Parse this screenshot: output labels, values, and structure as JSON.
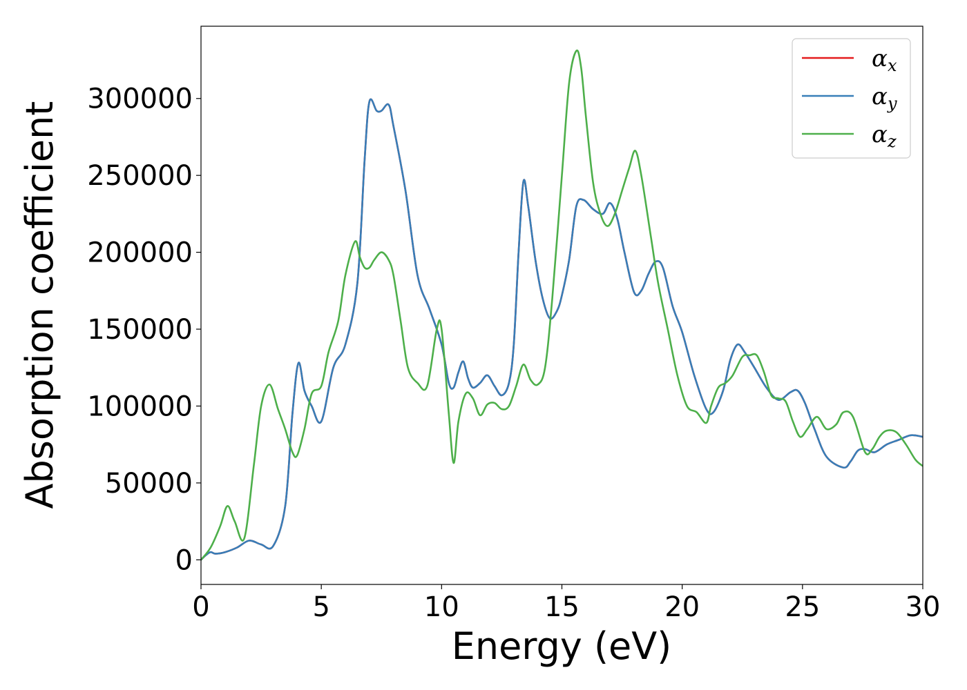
{
  "chart_data": {
    "type": "line",
    "title": "",
    "xlabel": "Energy (eV)",
    "ylabel": "Absorption coefficient",
    "xlim": [
      0,
      30
    ],
    "ylim": [
      -16000,
      347000
    ],
    "xticks": [
      0,
      5,
      10,
      15,
      20,
      25,
      30
    ],
    "yticks": [
      0,
      50000,
      100000,
      150000,
      200000,
      250000,
      300000
    ],
    "grid": false,
    "legend_position": "top-right",
    "series": [
      {
        "name": "α_x",
        "symbol": "α",
        "subscript": "x",
        "color": "#e41a1c",
        "x": [
          0,
          0.2,
          0.4,
          0.6,
          1.0,
          1.5,
          2.0,
          2.5,
          3.0,
          3.5,
          3.8,
          4.05,
          4.3,
          4.6,
          5.0,
          5.5,
          6.0,
          6.5,
          6.8,
          7.0,
          7.3,
          7.5,
          7.8,
          8.0,
          8.5,
          9.0,
          9.5,
          10.0,
          10.3,
          10.5,
          10.7,
          10.9,
          11.1,
          11.3,
          11.6,
          11.9,
          12.2,
          12.5,
          12.8,
          13.0,
          13.2,
          13.4,
          13.6,
          13.9,
          14.2,
          14.5,
          14.8,
          15.0,
          15.3,
          15.6,
          15.9,
          16.3,
          16.7,
          17.0,
          17.3,
          17.6,
          18.0,
          18.3,
          18.6,
          18.9,
          19.2,
          19.6,
          20.0,
          20.5,
          21.0,
          21.3,
          21.7,
          22.0,
          22.3,
          22.6,
          23.0,
          23.5,
          24.0,
          24.5,
          24.8,
          25.1,
          25.5,
          26.0,
          26.7,
          27.0,
          27.3,
          27.6,
          28.0,
          28.5,
          29.0,
          29.5,
          30.0
        ],
        "y": [
          0,
          3000,
          5000,
          4000,
          5000,
          8000,
          12500,
          10000,
          9000,
          35000,
          95000,
          128000,
          110000,
          100000,
          90000,
          125000,
          140000,
          180000,
          260000,
          298000,
          292000,
          292000,
          296000,
          282000,
          240000,
          185000,
          163000,
          140000,
          115000,
          112000,
          122000,
          129000,
          118000,
          112000,
          115000,
          120000,
          113000,
          107000,
          115000,
          140000,
          200000,
          246000,
          230000,
          195000,
          170000,
          157000,
          162000,
          172000,
          195000,
          230000,
          234000,
          228000,
          225000,
          232000,
          222000,
          200000,
          174000,
          175000,
          186000,
          194000,
          190000,
          165000,
          148000,
          120000,
          98000,
          96000,
          110000,
          130000,
          140000,
          135000,
          125000,
          112000,
          104000,
          109000,
          110000,
          102000,
          85000,
          67000,
          60000,
          64000,
          71000,
          72000,
          70000,
          75000,
          78000,
          81000,
          80000
        ]
      },
      {
        "name": "α_y",
        "symbol": "α",
        "subscript": "y",
        "color": "#377eb8",
        "x": [
          0,
          0.2,
          0.4,
          0.6,
          1.0,
          1.5,
          2.0,
          2.5,
          3.0,
          3.5,
          3.8,
          4.05,
          4.3,
          4.6,
          5.0,
          5.5,
          6.0,
          6.5,
          6.8,
          7.0,
          7.3,
          7.5,
          7.8,
          8.0,
          8.5,
          9.0,
          9.5,
          10.0,
          10.3,
          10.5,
          10.7,
          10.9,
          11.1,
          11.3,
          11.6,
          11.9,
          12.2,
          12.5,
          12.8,
          13.0,
          13.2,
          13.4,
          13.6,
          13.9,
          14.2,
          14.5,
          14.8,
          15.0,
          15.3,
          15.6,
          15.9,
          16.3,
          16.7,
          17.0,
          17.3,
          17.6,
          18.0,
          18.3,
          18.6,
          18.9,
          19.2,
          19.6,
          20.0,
          20.5,
          21.0,
          21.3,
          21.7,
          22.0,
          22.3,
          22.6,
          23.0,
          23.5,
          24.0,
          24.5,
          24.8,
          25.1,
          25.5,
          26.0,
          26.7,
          27.0,
          27.3,
          27.6,
          28.0,
          28.5,
          29.0,
          29.5,
          30.0
        ],
        "y": [
          0,
          3000,
          5000,
          4000,
          5000,
          8000,
          12500,
          10000,
          9000,
          35000,
          95000,
          128000,
          110000,
          100000,
          90000,
          125000,
          140000,
          180000,
          260000,
          298000,
          292000,
          292000,
          296000,
          282000,
          240000,
          185000,
          163000,
          140000,
          115000,
          112000,
          122000,
          129000,
          118000,
          112000,
          115000,
          120000,
          113000,
          107000,
          115000,
          140000,
          200000,
          246000,
          230000,
          195000,
          170000,
          157000,
          162000,
          172000,
          195000,
          230000,
          234000,
          228000,
          225000,
          232000,
          222000,
          200000,
          174000,
          175000,
          186000,
          194000,
          190000,
          165000,
          148000,
          120000,
          98000,
          96000,
          110000,
          130000,
          140000,
          135000,
          125000,
          112000,
          104000,
          109000,
          110000,
          102000,
          85000,
          67000,
          60000,
          64000,
          71000,
          72000,
          70000,
          75000,
          78000,
          81000,
          80000
        ]
      },
      {
        "name": "α_z",
        "symbol": "α",
        "subscript": "z",
        "color": "#4daf4a",
        "x": [
          0,
          0.4,
          0.8,
          1.1,
          1.4,
          1.8,
          2.2,
          2.5,
          2.85,
          3.2,
          3.5,
          3.8,
          4.0,
          4.3,
          4.6,
          5.0,
          5.3,
          5.7,
          6.0,
          6.4,
          6.6,
          6.8,
          7.0,
          7.2,
          7.5,
          7.8,
          8.0,
          8.3,
          8.6,
          9.0,
          9.4,
          9.8,
          10.0,
          10.3,
          10.5,
          10.7,
          11.0,
          11.3,
          11.6,
          11.9,
          12.2,
          12.5,
          12.8,
          13.1,
          13.4,
          13.7,
          14.0,
          14.3,
          14.6,
          15.0,
          15.3,
          15.6,
          15.8,
          16.0,
          16.3,
          16.6,
          16.9,
          17.2,
          17.5,
          17.8,
          18.05,
          18.3,
          18.7,
          19.0,
          19.4,
          19.8,
          20.2,
          20.6,
          21.0,
          21.2,
          21.5,
          21.8,
          22.1,
          22.5,
          22.8,
          23.1,
          23.4,
          23.7,
          24.0,
          24.3,
          24.6,
          24.9,
          25.2,
          25.6,
          26.0,
          26.4,
          26.7,
          27.1,
          27.6,
          27.9,
          28.2,
          28.5,
          28.9,
          29.3,
          29.7,
          30.0
        ],
        "y": [
          0,
          8000,
          22000,
          35000,
          25000,
          14000,
          62000,
          100000,
          114000,
          98000,
          85000,
          70000,
          68000,
          85000,
          108000,
          113000,
          135000,
          155000,
          185000,
          207000,
          197000,
          190000,
          190000,
          195000,
          200000,
          195000,
          185000,
          155000,
          125000,
          115000,
          113000,
          150000,
          150000,
          95000,
          63000,
          90000,
          108000,
          105000,
          94000,
          101000,
          102000,
          98000,
          100000,
          113000,
          127000,
          117000,
          114000,
          125000,
          170000,
          250000,
          310000,
          331000,
          320000,
          288000,
          245000,
          225000,
          217000,
          225000,
          240000,
          255000,
          266000,
          250000,
          210000,
          180000,
          150000,
          120000,
          100000,
          96000,
          89000,
          100000,
          112000,
          115000,
          120000,
          132000,
          133000,
          133000,
          122000,
          107000,
          105000,
          103000,
          90000,
          80000,
          85000,
          93000,
          85000,
          88000,
          96000,
          93000,
          70000,
          72000,
          80000,
          84000,
          83000,
          75000,
          65000,
          61000
        ]
      }
    ]
  }
}
